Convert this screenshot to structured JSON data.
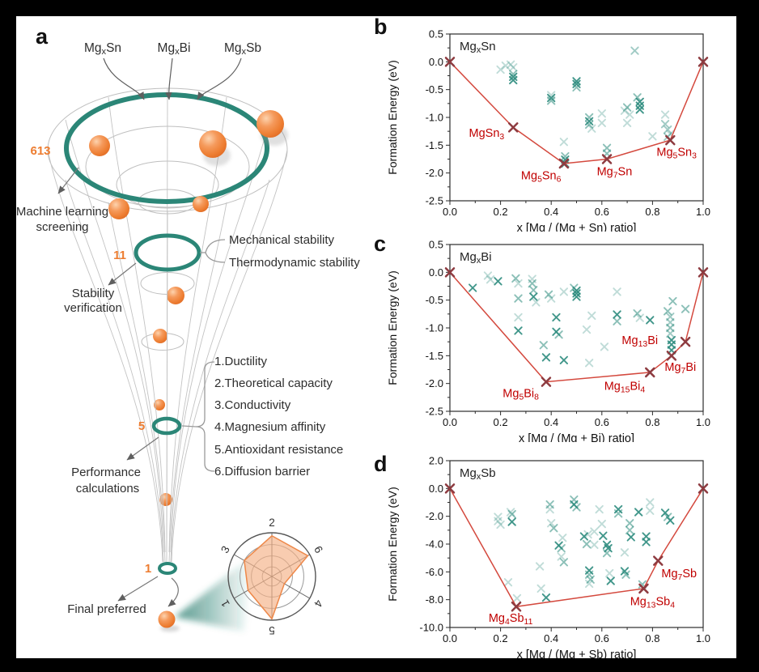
{
  "panel_a": {
    "label": "a",
    "inputs": [
      "Mg~x~Sn",
      "Mg~x~Bi",
      "Mg~x~Sb"
    ],
    "stages": [
      {
        "count": "613",
        "lines": [
          "Machine learning",
          "screening"
        ]
      },
      {
        "count": "11",
        "lines": [
          "Stability",
          "verification"
        ]
      },
      {
        "count": "5",
        "lines": [
          "Performance",
          "calculations"
        ]
      },
      {
        "count": "1",
        "lines": [
          "Final preferred"
        ]
      }
    ],
    "stability_labels": [
      "Mechanical stability",
      "Thermodynamic stability"
    ],
    "criteria": [
      "1.Ductility",
      "2.Theoretical capacity",
      "3.Conductivity",
      "4.Magnesium affinity",
      "5.Antioxidant resistance",
      "6.Diffusion barrier"
    ],
    "radar": {
      "axes": [
        "2",
        "6",
        "4",
        "5",
        "1",
        "3"
      ],
      "values": [
        0.93,
        0.95,
        0.33,
        0.97,
        0.63,
        0.73
      ],
      "rings": [
        0.22,
        0.47,
        0.73,
        1.0
      ]
    },
    "accent_orange": "#ED7D31",
    "accent_teal": "#2B8677"
  },
  "style": {
    "scatter_color": "#2E8C7E",
    "hull_line_color": "#D4493E",
    "hull_marker_color": "#8E3B40",
    "hull_label_color": "#C00000"
  },
  "chart_data": [
    {
      "panel_label": "b",
      "type": "scatter",
      "title": "Mg~x~Sn",
      "xlabel": "x [Mg / (Mg + Sn) ratio]",
      "ylabel": "Formation Energy (eV)",
      "xlim": [
        0.0,
        1.0
      ],
      "ylim": [
        -2.5,
        0.5
      ],
      "xticks": [
        0.0,
        0.2,
        0.4,
        0.6,
        0.8,
        1.0
      ],
      "yticks": [
        0.5,
        0.0,
        -0.5,
        -1.0,
        -1.5,
        -2.0,
        -2.5
      ],
      "hull": [
        [
          0.0,
          0.0
        ],
        [
          0.25,
          -1.18
        ],
        [
          0.45,
          -1.83
        ],
        [
          0.62,
          -1.75
        ],
        [
          0.87,
          -1.41
        ],
        [
          1.0,
          0.0
        ]
      ],
      "hull_labels": [
        {
          "f": "MgSn~3~",
          "x": 0.145,
          "y": -1.28
        },
        {
          "f": "Mg~5~Sn~6~",
          "x": 0.36,
          "y": -2.04
        },
        {
          "f": "Mg~7~Sn",
          "x": 0.65,
          "y": -1.97
        },
        {
          "f": "Mg~5~Sn~3~",
          "x": 0.895,
          "y": -1.62
        }
      ],
      "scatter": [
        [
          0.2,
          -0.14,
          0.3
        ],
        [
          0.22,
          -0.07,
          0.3
        ],
        [
          0.24,
          -0.05,
          0.3
        ],
        [
          0.25,
          -0.1,
          0.3
        ],
        [
          0.25,
          -0.22,
          0.55
        ],
        [
          0.25,
          -0.27,
          0.9
        ],
        [
          0.25,
          -0.33,
          0.9
        ],
        [
          0.4,
          -0.6,
          0.3
        ],
        [
          0.4,
          -0.65,
          0.9
        ],
        [
          0.4,
          -0.7,
          0.55
        ],
        [
          0.45,
          -1.44,
          0.3
        ],
        [
          0.455,
          -1.7,
          0.55
        ],
        [
          0.455,
          -1.76,
          0.9
        ],
        [
          0.455,
          -1.83,
          0.9
        ],
        [
          0.5,
          -0.35,
          0.9
        ],
        [
          0.5,
          -0.4,
          0.9
        ],
        [
          0.5,
          -0.46,
          0.55
        ],
        [
          0.55,
          -1.0,
          0.55
        ],
        [
          0.55,
          -1.07,
          0.9
        ],
        [
          0.55,
          -1.13,
          0.55
        ],
        [
          0.56,
          -1.2,
          0.3
        ],
        [
          0.6,
          -0.93,
          0.3
        ],
        [
          0.6,
          -1.1,
          0.3
        ],
        [
          0.62,
          -1.55,
          0.55
        ],
        [
          0.62,
          -1.65,
          0.55
        ],
        [
          0.69,
          -0.88,
          0.3
        ],
        [
          0.7,
          -0.82,
          0.55
        ],
        [
          0.71,
          -0.95,
          0.3
        ],
        [
          0.7,
          -1.1,
          0.3
        ],
        [
          0.73,
          0.2,
          0.45
        ],
        [
          0.74,
          -0.64,
          0.55
        ],
        [
          0.75,
          -0.72,
          0.9
        ],
        [
          0.75,
          -0.79,
          0.9
        ],
        [
          0.75,
          -0.86,
          0.9
        ],
        [
          0.8,
          -1.34,
          0.3
        ],
        [
          0.85,
          -0.95,
          0.3
        ],
        [
          0.85,
          -1.12,
          0.45
        ],
        [
          0.86,
          -1.22,
          0.45
        ],
        [
          0.86,
          -1.35,
          0.45
        ],
        [
          0.87,
          -1.3,
          0.3
        ]
      ]
    },
    {
      "panel_label": "c",
      "type": "scatter",
      "title": "Mg~x~Bi",
      "xlabel": "x [Mg / (Mg + Bi) ratio]",
      "ylabel": "Formation Energy (eV)",
      "xlim": [
        0.0,
        1.0
      ],
      "ylim": [
        -2.5,
        0.5
      ],
      "xticks": [
        0.0,
        0.2,
        0.4,
        0.6,
        0.8,
        1.0
      ],
      "yticks": [
        0.5,
        0.0,
        -0.5,
        -1.0,
        -1.5,
        -2.0,
        -2.5
      ],
      "hull": [
        [
          0.0,
          0.0
        ],
        [
          0.38,
          -1.97
        ],
        [
          0.79,
          -1.8
        ],
        [
          0.875,
          -1.5
        ],
        [
          0.93,
          -1.25
        ],
        [
          1.0,
          0.0
        ]
      ],
      "hull_labels": [
        {
          "f": "Mg~5~Bi~8~",
          "x": 0.28,
          "y": -2.17
        },
        {
          "f": "Mg~15~Bi~4~",
          "x": 0.69,
          "y": -2.04
        },
        {
          "f": "Mg~7~Bi",
          "x": 0.91,
          "y": -1.7
        },
        {
          "f": "Mg~13~Bi",
          "x": 0.75,
          "y": -1.22
        }
      ],
      "scatter": [
        [
          0.09,
          -0.28,
          0.9
        ],
        [
          0.15,
          -0.06,
          0.3
        ],
        [
          0.16,
          -0.13,
          0.3
        ],
        [
          0.19,
          -0.16,
          0.9
        ],
        [
          0.26,
          -0.11,
          0.55
        ],
        [
          0.27,
          -0.2,
          0.3
        ],
        [
          0.27,
          -0.47,
          0.55
        ],
        [
          0.27,
          -0.81,
          0.3
        ],
        [
          0.27,
          -1.05,
          0.9
        ],
        [
          0.325,
          -0.12,
          0.3
        ],
        [
          0.325,
          -0.2,
          0.55
        ],
        [
          0.33,
          -0.32,
          0.55
        ],
        [
          0.33,
          -0.44,
          0.9
        ],
        [
          0.34,
          -0.54,
          0.3
        ],
        [
          0.37,
          -1.31,
          0.55
        ],
        [
          0.38,
          -1.53,
          0.9
        ],
        [
          0.39,
          -0.4,
          0.55
        ],
        [
          0.4,
          -0.47,
          0.3
        ],
        [
          0.42,
          -0.81,
          0.9
        ],
        [
          0.42,
          -1.07,
          0.9
        ],
        [
          0.43,
          -1.12,
          0.55
        ],
        [
          0.45,
          -0.35,
          0.3
        ],
        [
          0.45,
          -1.58,
          0.9
        ],
        [
          0.49,
          -0.28,
          0.55
        ],
        [
          0.5,
          -0.33,
          0.9
        ],
        [
          0.5,
          -0.38,
          0.9
        ],
        [
          0.5,
          -0.44,
          0.9
        ],
        [
          0.54,
          -1.03,
          0.3
        ],
        [
          0.55,
          -1.63,
          0.3
        ],
        [
          0.56,
          -0.78,
          0.3
        ],
        [
          0.61,
          -1.34,
          0.3
        ],
        [
          0.66,
          -0.35,
          0.3
        ],
        [
          0.66,
          -0.76,
          0.9
        ],
        [
          0.66,
          -0.88,
          0.55
        ],
        [
          0.74,
          -0.74,
          0.55
        ],
        [
          0.75,
          -0.82,
          0.3
        ],
        [
          0.79,
          -0.86,
          0.9
        ],
        [
          0.86,
          -0.7,
          0.55
        ],
        [
          0.87,
          -0.8,
          0.45
        ],
        [
          0.87,
          -0.9,
          0.45
        ],
        [
          0.87,
          -1.0,
          0.55
        ],
        [
          0.87,
          -1.1,
          0.45
        ],
        [
          0.875,
          -1.22,
          0.9
        ],
        [
          0.875,
          -1.3,
          0.9
        ],
        [
          0.875,
          -1.4,
          0.9
        ],
        [
          0.88,
          -0.52,
          0.55
        ],
        [
          0.93,
          -0.66,
          0.55
        ]
      ]
    },
    {
      "panel_label": "d",
      "type": "scatter",
      "title": "Mg~x~Sb",
      "xlabel": "x [Mg / (Mg + Sb) ratio]",
      "ylabel": "Formation Energy (eV)",
      "xlim": [
        0.0,
        1.0
      ],
      "ylim": [
        -10.0,
        2.0
      ],
      "xticks": [
        0.0,
        0.2,
        0.4,
        0.6,
        0.8,
        1.0
      ],
      "yticks": [
        2.0,
        0.0,
        -2.0,
        -4.0,
        -6.0,
        -8.0,
        -10.0
      ],
      "hull": [
        [
          0.0,
          0.0
        ],
        [
          0.262,
          -8.5
        ],
        [
          0.765,
          -7.2
        ],
        [
          0.822,
          -5.2
        ],
        [
          1.0,
          0.0
        ]
      ],
      "hull_labels": [
        {
          "f": "Mg~4~Sb~11~",
          "x": 0.24,
          "y": -9.3
        },
        {
          "f": "Mg~13~Sb~4~",
          "x": 0.8,
          "y": -8.1
        },
        {
          "f": "Mg~7~Sb",
          "x": 0.905,
          "y": -6.1
        }
      ],
      "scatter": [
        [
          0.19,
          -2.05,
          0.3
        ],
        [
          0.19,
          -2.35,
          0.3
        ],
        [
          0.2,
          -2.6,
          0.3
        ],
        [
          0.24,
          -1.7,
          0.3
        ],
        [
          0.245,
          -1.85,
          0.55
        ],
        [
          0.245,
          -2.4,
          0.9
        ],
        [
          0.23,
          -6.75,
          0.3
        ],
        [
          0.265,
          -7.9,
          0.3
        ],
        [
          0.355,
          -5.6,
          0.3
        ],
        [
          0.36,
          -7.2,
          0.3
        ],
        [
          0.38,
          -7.85,
          0.9
        ],
        [
          0.395,
          -1.15,
          0.55
        ],
        [
          0.395,
          -1.5,
          0.3
        ],
        [
          0.4,
          -2.5,
          0.3
        ],
        [
          0.41,
          -2.85,
          0.55
        ],
        [
          0.43,
          -4.1,
          0.9
        ],
        [
          0.44,
          -4.3,
          0.55
        ],
        [
          0.445,
          -3.55,
          0.3
        ],
        [
          0.44,
          -4.9,
          0.3
        ],
        [
          0.45,
          -5.3,
          0.55
        ],
        [
          0.49,
          -0.8,
          0.55
        ],
        [
          0.49,
          -1.15,
          0.9
        ],
        [
          0.5,
          -1.35,
          0.55
        ],
        [
          0.53,
          -3.45,
          0.9
        ],
        [
          0.545,
          -3.3,
          0.3
        ],
        [
          0.54,
          -4.0,
          0.55
        ],
        [
          0.55,
          -5.9,
          0.9
        ],
        [
          0.55,
          -6.2,
          0.55
        ],
        [
          0.555,
          -6.55,
          0.55
        ],
        [
          0.55,
          -6.85,
          0.3
        ],
        [
          0.57,
          -3.1,
          0.3
        ],
        [
          0.57,
          -4.05,
          0.3
        ],
        [
          0.59,
          -1.5,
          0.3
        ],
        [
          0.6,
          -2.55,
          0.3
        ],
        [
          0.605,
          -3.4,
          0.9
        ],
        [
          0.62,
          -4.05,
          0.9
        ],
        [
          0.625,
          -4.3,
          0.9
        ],
        [
          0.62,
          -4.65,
          0.55
        ],
        [
          0.63,
          -6.1,
          0.3
        ],
        [
          0.635,
          -6.65,
          0.9
        ],
        [
          0.665,
          -1.5,
          0.9
        ],
        [
          0.665,
          -1.8,
          0.55
        ],
        [
          0.69,
          -4.6,
          0.3
        ],
        [
          0.69,
          -5.95,
          0.9
        ],
        [
          0.695,
          -6.2,
          0.55
        ],
        [
          0.71,
          -2.5,
          0.55
        ],
        [
          0.71,
          -3.0,
          0.55
        ],
        [
          0.715,
          -3.5,
          0.9
        ],
        [
          0.745,
          -1.7,
          0.9
        ],
        [
          0.76,
          -6.9,
          0.55
        ],
        [
          0.775,
          -3.45,
          0.9
        ],
        [
          0.775,
          -3.85,
          0.9
        ],
        [
          0.79,
          -1.0,
          0.3
        ],
        [
          0.79,
          -1.6,
          0.3
        ],
        [
          0.85,
          -1.75,
          0.9
        ],
        [
          0.86,
          -2.05,
          0.55
        ],
        [
          0.87,
          -2.3,
          0.9
        ]
      ]
    }
  ]
}
